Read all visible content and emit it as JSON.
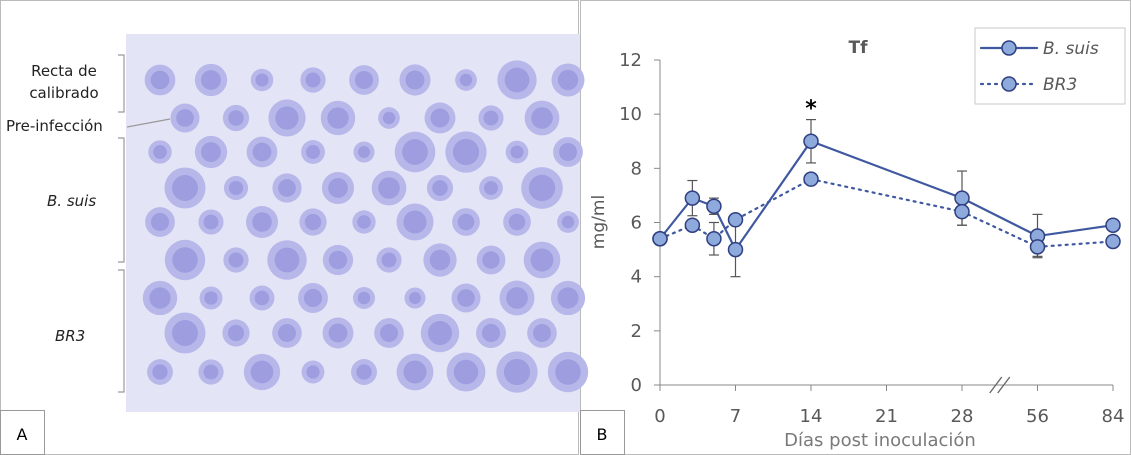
{
  "panel_a": {
    "label": "A",
    "groups": [
      "Recta de calibrado",
      "Pre-infección",
      "B. suis",
      "BR3"
    ]
  },
  "panel_b": {
    "label": "B"
  },
  "chart_data": {
    "type": "line",
    "title": "Tf",
    "xlabel": "Días post inoculación",
    "ylabel": "mg/ml",
    "x": [
      0,
      3,
      5,
      7,
      14,
      28,
      56,
      84
    ],
    "xlim": [
      0,
      84
    ],
    "xticks": [
      0,
      7,
      14,
      21,
      28,
      56,
      84
    ],
    "xbreak": [
      28,
      56
    ],
    "ylim": [
      0,
      12
    ],
    "yticks": [
      0,
      2,
      4,
      6,
      8,
      10,
      12
    ],
    "legend": "upper right",
    "series": [
      {
        "name": "B. suis",
        "color": "#3f58a0",
        "marker_color": "#8ea9db",
        "line_style": "solid",
        "values": [
          5.4,
          6.9,
          6.6,
          5.0,
          9.0,
          6.9,
          5.5,
          5.9
        ],
        "errors": [
          null,
          0.65,
          0.3,
          1.0,
          0.8,
          1.0,
          0.8,
          null
        ]
      },
      {
        "name": "BR3",
        "color": "#3f58a0",
        "marker_color": "#8ea9db",
        "line_style": "dotted",
        "values": [
          5.4,
          5.9,
          5.4,
          6.1,
          7.6,
          6.4,
          5.1,
          5.3
        ],
        "errors": [
          null,
          null,
          0.6,
          null,
          null,
          0.5,
          0.35,
          null
        ]
      }
    ],
    "annotations": [
      {
        "text": "*",
        "x": 14
      }
    ]
  }
}
